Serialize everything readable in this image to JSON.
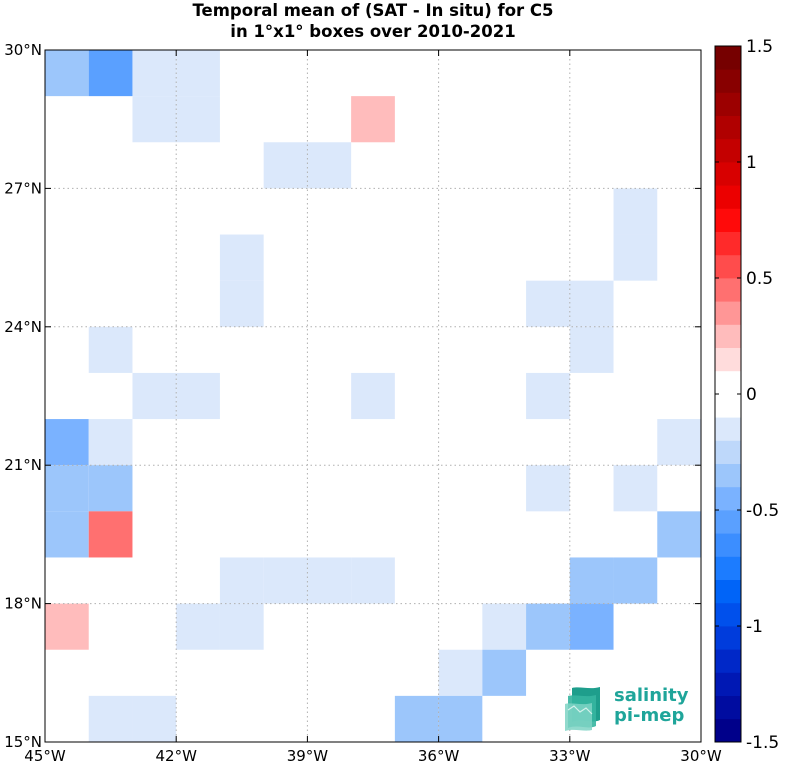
{
  "chart_data": {
    "type": "heatmap",
    "title": "Temporal mean of (SAT - In situ) for C5",
    "subtitle": "in 1°x1° boxes over 2010-2021",
    "x_range": [
      -45,
      -30
    ],
    "y_range": [
      15,
      30
    ],
    "x_ticks": [
      -45,
      -42,
      -39,
      -36,
      -33,
      -30
    ],
    "x_tick_labels": [
      "45°W",
      "42°W",
      "39°W",
      "36°W",
      "33°W",
      "30°W"
    ],
    "y_ticks": [
      15,
      18,
      21,
      24,
      27,
      30
    ],
    "y_tick_labels": [
      "15°N",
      "18°N",
      "21°N",
      "24°N",
      "27°N",
      "30°N"
    ],
    "grid": true,
    "colorbar": {
      "range": [
        -1.5,
        1.5
      ],
      "ticks": [
        1.5,
        1,
        0.5,
        0,
        -0.5,
        -1,
        -1.5
      ],
      "tick_labels": [
        "1.5",
        "1",
        "0.5",
        "0",
        "-0.5",
        "-1",
        "-1.5"
      ],
      "placement": "right"
    },
    "cells": [
      {
        "lon": -45,
        "lat": 29,
        "value": -0.35
      },
      {
        "lon": -44,
        "lat": 29,
        "value": -0.6
      },
      {
        "lon": -43,
        "lat": 29,
        "value": -0.2
      },
      {
        "lon": -42,
        "lat": 29,
        "value": -0.2
      },
      {
        "lon": -43,
        "lat": 28,
        "value": -0.2
      },
      {
        "lon": -42,
        "lat": 28,
        "value": -0.2
      },
      {
        "lon": -38,
        "lat": 28,
        "value": 0.2
      },
      {
        "lon": -40,
        "lat": 27,
        "value": -0.2
      },
      {
        "lon": -39,
        "lat": 27,
        "value": -0.2
      },
      {
        "lon": -32,
        "lat": 26,
        "value": -0.2
      },
      {
        "lon": -32,
        "lat": 25,
        "value": -0.2
      },
      {
        "lon": -41,
        "lat": 25,
        "value": -0.2
      },
      {
        "lon": -41,
        "lat": 24,
        "value": -0.2
      },
      {
        "lon": -34,
        "lat": 24,
        "value": -0.2
      },
      {
        "lon": -33,
        "lat": 24,
        "value": -0.2
      },
      {
        "lon": -44,
        "lat": 23,
        "value": -0.2
      },
      {
        "lon": -33,
        "lat": 23,
        "value": -0.2
      },
      {
        "lon": -43,
        "lat": 22,
        "value": -0.2
      },
      {
        "lon": -42,
        "lat": 22,
        "value": -0.2
      },
      {
        "lon": -38,
        "lat": 22,
        "value": -0.2
      },
      {
        "lon": -34,
        "lat": 22,
        "value": -0.2
      },
      {
        "lon": -45,
        "lat": 21,
        "value": -0.45
      },
      {
        "lon": -44,
        "lat": 21,
        "value": -0.2
      },
      {
        "lon": -31,
        "lat": 21,
        "value": -0.2
      },
      {
        "lon": -45,
        "lat": 20,
        "value": -0.3
      },
      {
        "lon": -44,
        "lat": 20,
        "value": -0.3
      },
      {
        "lon": -34,
        "lat": 20,
        "value": -0.2
      },
      {
        "lon": -32,
        "lat": 20,
        "value": -0.2
      },
      {
        "lon": -45,
        "lat": 19,
        "value": -0.3
      },
      {
        "lon": -44,
        "lat": 19,
        "value": 0.4
      },
      {
        "lon": -31,
        "lat": 19,
        "value": -0.3
      },
      {
        "lon": -33,
        "lat": 18,
        "value": -0.4
      },
      {
        "lon": -32,
        "lat": 18,
        "value": -0.3
      },
      {
        "lon": -41,
        "lat": 18,
        "value": -0.2
      },
      {
        "lon": -40,
        "lat": 18,
        "value": -0.2
      },
      {
        "lon": -39,
        "lat": 18,
        "value": -0.2
      },
      {
        "lon": -38,
        "lat": 18,
        "value": -0.2
      },
      {
        "lon": -45,
        "lat": 17,
        "value": 0.2
      },
      {
        "lon": -42,
        "lat": 17,
        "value": -0.2
      },
      {
        "lon": -41,
        "lat": 17,
        "value": -0.2
      },
      {
        "lon": -35,
        "lat": 17,
        "value": -0.2
      },
      {
        "lon": -34,
        "lat": 17,
        "value": -0.4
      },
      {
        "lon": -33,
        "lat": 17,
        "value": -0.5
      },
      {
        "lon": -36,
        "lat": 16,
        "value": -0.2
      },
      {
        "lon": -35,
        "lat": 16,
        "value": -0.4
      },
      {
        "lon": -44,
        "lat": 15,
        "value": -0.2
      },
      {
        "lon": -43,
        "lat": 15,
        "value": -0.2
      },
      {
        "lon": -37,
        "lat": 15,
        "value": -0.3
      },
      {
        "lon": -36,
        "lat": 15,
        "value": -0.3
      }
    ]
  },
  "colorbar_colors": [
    "#00008a",
    "#000ca0",
    "#0018b4",
    "#0028c8",
    "#003cdc",
    "#0050ec",
    "#0064f8",
    "#1c7cff",
    "#3c8eff",
    "#5aa0ff",
    "#7ab2ff",
    "#9cc6fb",
    "#bed8fa",
    "#dbe8fb",
    "#ffffff",
    "#ffffff",
    "#ffdcdc",
    "#ffbcbc",
    "#ff9696",
    "#ff7070",
    "#ff4c4c",
    "#ff2a2a",
    "#ff0a0a",
    "#ec0000",
    "#d80000",
    "#c40000",
    "#b00000",
    "#9c0000",
    "#880000",
    "#760000"
  ],
  "logo": {
    "line1": "salinity",
    "line2": "pi-mep"
  }
}
